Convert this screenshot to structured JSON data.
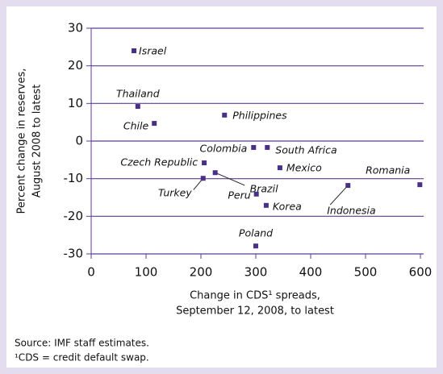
{
  "chart_data": {
    "type": "scatter",
    "xlabel": [
      "Change in CDS¹ spreads,",
      "September 12, 2008, to latest"
    ],
    "ylabel": [
      "Percent change in reserves,",
      "August 2008 to latest"
    ],
    "labels": [
      "Israel",
      "Thailand",
      "Chile",
      "Philippines",
      "Colombia",
      "South Africa",
      "Czech Republic",
      "Mexico",
      "Turkey",
      "Brazil",
      "Peru",
      "Korea",
      "Indonesia",
      "Romania",
      "Poland"
    ],
    "x": [
      78,
      85,
      115,
      243,
      296,
      321,
      206,
      344,
      204,
      226,
      301,
      319,
      468,
      599,
      300
    ],
    "y": [
      24,
      9.2,
      4.7,
      6.9,
      -1.7,
      -1.7,
      -5.8,
      -7.1,
      -9.9,
      -8.4,
      -14.1,
      -17.1,
      -11.8,
      -11.6,
      -27.9
    ],
    "color": "#4a2f86",
    "xlim": [
      0,
      600
    ],
    "xticks": [
      0,
      100,
      200,
      300,
      400,
      500,
      600
    ],
    "ylim": [
      -30,
      30
    ],
    "yticks": [
      -30,
      -20,
      -10,
      0,
      10,
      20,
      30
    ],
    "grid": true,
    "source": "Source:  IMF staff estimates.",
    "footnote": "¹CDS = credit default swap."
  }
}
